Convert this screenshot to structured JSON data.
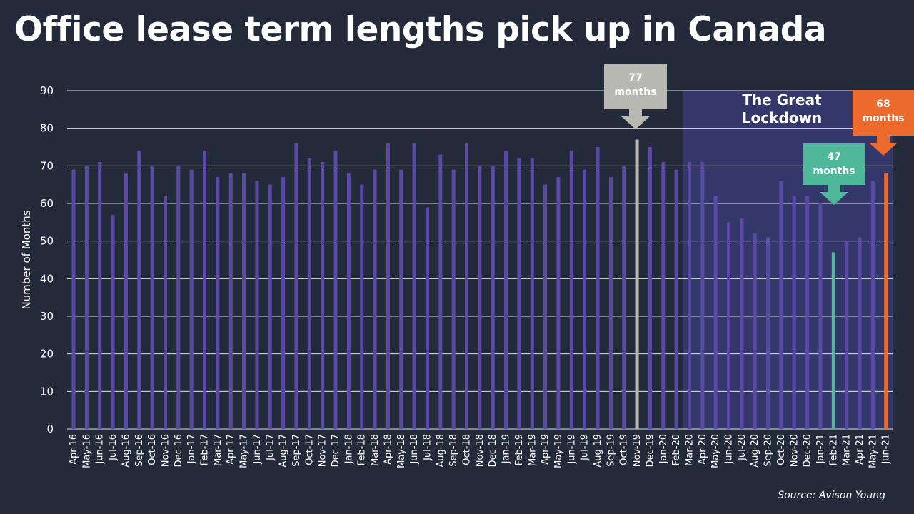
{
  "title": "Office lease term lengths pick up in Canada",
  "source": "Source: Avison Young",
  "colors": {
    "background": "#232a3a",
    "bar": "#5a4aa8",
    "highlight_gray": "#b9b9b4",
    "highlight_green": "#4fb89a",
    "highlight_orange": "#ec6a2c",
    "lockdown_band": "#34376a",
    "gridline": "#ffffff"
  },
  "annotations": {
    "peak": "77 months",
    "low": "47 months",
    "latest": "68 months",
    "lockdown": "The Great Lockdown"
  },
  "chart_data": {
    "type": "bar",
    "ylabel": "Number of Months",
    "xlabel": "",
    "ylim": [
      0,
      90
    ],
    "yticks": [
      0,
      10,
      20,
      30,
      40,
      50,
      60,
      70,
      80,
      90
    ],
    "grid": true,
    "shaded_region": {
      "label": "The Great Lockdown",
      "from": "Mar-20",
      "to": "Jun-21"
    },
    "highlights": {
      "Nov-19": "gray",
      "Feb-21": "green",
      "Jun-21": "orange"
    },
    "categories": [
      "Apr-16",
      "May-16",
      "Jun-16",
      "Jul-16",
      "Aug-16",
      "Sep-16",
      "Oct-16",
      "Nov-16",
      "Dec-16",
      "Jan-17",
      "Feb-17",
      "Mar-17",
      "Apr-17",
      "May-17",
      "Jun-17",
      "Jul-17",
      "Aug-17",
      "Sep-17",
      "Oct-17",
      "Nov-17",
      "Dec-17",
      "Jan-18",
      "Feb-18",
      "Mar-18",
      "Apr-18",
      "May-18",
      "Jun-18",
      "Jul-18",
      "Aug-18",
      "Sep-18",
      "Oct-18",
      "Nov-18",
      "Dec-18",
      "Jan-19",
      "Feb-19",
      "Mar-19",
      "Apr-19",
      "May-19",
      "Jun-19",
      "Jul-19",
      "Aug-19",
      "Sep-19",
      "Oct-19",
      "Nov-19",
      "Dec-19",
      "Jan-20",
      "Feb-20",
      "Mar-20",
      "Apr-20",
      "May-20",
      "Jun-20",
      "Jul-20",
      "Aug-20",
      "Sep-20",
      "Oct-20",
      "Nov-20",
      "Dec-20",
      "Jan-21",
      "Feb-21",
      "Mar-21",
      "Apr-21",
      "May-21",
      "Jun-21"
    ],
    "values": [
      69,
      70,
      71,
      57,
      68,
      74,
      70,
      62,
      70,
      69,
      74,
      67,
      68,
      68,
      66,
      65,
      67,
      76,
      72,
      71,
      74,
      68,
      65,
      69,
      76,
      69,
      76,
      59,
      73,
      69,
      76,
      70,
      70,
      74,
      72,
      72,
      65,
      67,
      74,
      69,
      75,
      67,
      70,
      77,
      75,
      71,
      69,
      71,
      71,
      62,
      55,
      56,
      52,
      51,
      66,
      62,
      62,
      60,
      47,
      50,
      51,
      66,
      68
    ]
  }
}
